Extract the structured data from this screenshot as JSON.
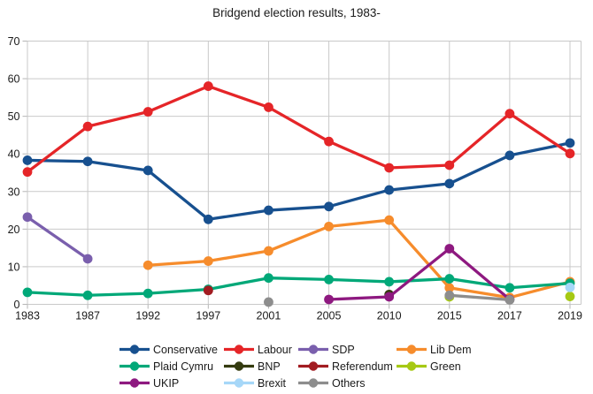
{
  "title": "Bridgend election results, 1983-",
  "colors": {
    "background": "#ffffff",
    "grid": "#c9c9c9",
    "axis": "#b5b5b5",
    "text": "#1a1a1a"
  },
  "chart_data": {
    "type": "line",
    "title": "Bridgend election results, 1983-",
    "xlabel": "",
    "ylabel": "",
    "ylim": [
      0,
      70
    ],
    "ytick_step": 10,
    "grid": true,
    "legend_position": "bottom",
    "categories": [
      "1983",
      "1987",
      "1992",
      "1997",
      "2001",
      "2005",
      "2010",
      "2015",
      "2017",
      "2019"
    ],
    "series": [
      {
        "name": "Conservative",
        "color": "#17508F",
        "values": [
          38.3,
          38.0,
          35.6,
          22.6,
          25.0,
          26.0,
          30.4,
          32.1,
          39.6,
          42.9
        ]
      },
      {
        "name": "Labour",
        "color": "#E52528",
        "values": [
          35.2,
          47.3,
          51.2,
          58.0,
          52.4,
          43.3,
          36.3,
          37.0,
          50.7,
          40.1
        ]
      },
      {
        "name": "SDP",
        "color": "#7A5FAD",
        "values": [
          23.2,
          12.1,
          null,
          null,
          null,
          null,
          null,
          null,
          null,
          null
        ]
      },
      {
        "name": "Lib Dem",
        "color": "#F68C2C",
        "values": [
          null,
          null,
          10.4,
          11.5,
          14.2,
          20.7,
          22.4,
          4.4,
          1.8,
          6.0
        ]
      },
      {
        "name": "Plaid Cymru",
        "color": "#00A878",
        "values": [
          3.2,
          2.4,
          2.9,
          4.0,
          7.0,
          6.6,
          6.0,
          6.8,
          4.4,
          5.6
        ]
      },
      {
        "name": "BNP",
        "color": "#343B0F",
        "values": [
          null,
          null,
          null,
          null,
          null,
          null,
          2.6,
          null,
          null,
          null
        ]
      },
      {
        "name": "Referendum",
        "color": "#A21C21",
        "values": [
          null,
          null,
          null,
          3.7,
          null,
          null,
          null,
          null,
          null,
          null
        ]
      },
      {
        "name": "Green",
        "color": "#A6C914",
        "values": [
          null,
          null,
          null,
          null,
          null,
          null,
          null,
          2.0,
          null,
          2.1
        ]
      },
      {
        "name": "UKIP",
        "color": "#8E1980",
        "values": [
          null,
          null,
          null,
          null,
          null,
          1.3,
          2.0,
          14.8,
          1.3,
          null
        ]
      },
      {
        "name": "Brexit",
        "color": "#A6D7F8",
        "values": [
          null,
          null,
          null,
          null,
          null,
          null,
          null,
          null,
          null,
          4.5
        ]
      },
      {
        "name": "Others",
        "color": "#8D8D8D",
        "values": [
          null,
          null,
          null,
          null,
          0.6,
          null,
          null,
          2.4,
          1.2,
          null
        ]
      }
    ],
    "legend_rows": [
      [
        "Conservative",
        "Labour",
        "SDP",
        "Lib Dem"
      ],
      [
        "Plaid Cymru",
        "BNP",
        "Referendum",
        "Green"
      ],
      [
        "UKIP",
        "Brexit",
        "Others"
      ]
    ]
  }
}
